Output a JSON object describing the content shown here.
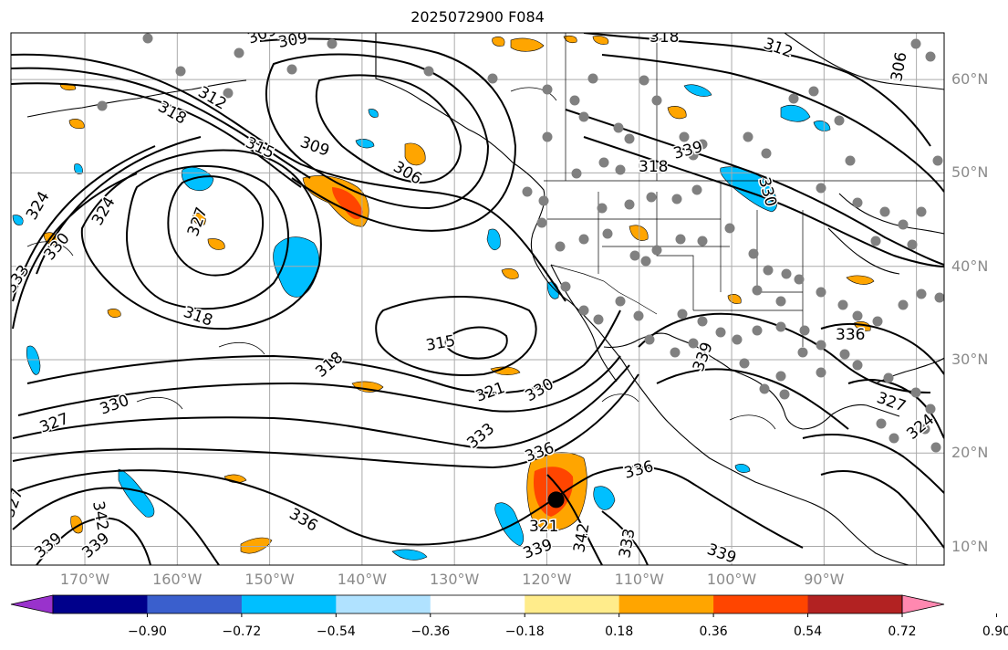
{
  "title": "2025072900 F084",
  "map": {
    "projection": "cylindrical",
    "lon_range": [
      -178,
      -77
    ],
    "lat_range": [
      8,
      65
    ],
    "graticule_lons": [
      -170,
      -160,
      -150,
      -140,
      -130,
      -120,
      -110,
      -100,
      -90,
      -80
    ],
    "graticule_lats": [
      10,
      20,
      30,
      40,
      50,
      60
    ],
    "lon_labels": [
      "170°W",
      "160°W",
      "150°W",
      "140°W",
      "130°W",
      "120°W",
      "110°W",
      "100°W",
      "90°W"
    ],
    "lat_labels": [
      "60°N",
      "50°N",
      "40°N",
      "30°N",
      "20°N",
      "10°N"
    ],
    "contour_labels": [
      "309",
      "318",
      "312",
      "309",
      "306",
      "312",
      "318",
      "315",
      "309",
      "306",
      "324",
      "324",
      "327",
      "330",
      "333",
      "318",
      "315",
      "318",
      "321",
      "330",
      "327",
      "330",
      "333",
      "336",
      "336",
      "339",
      "342",
      "339",
      "336",
      "339",
      "327",
      "324",
      "336",
      "339",
      "330",
      "327",
      "321",
      "342",
      "333",
      "339",
      "339",
      "318"
    ],
    "storm_marker": {
      "lon": -119,
      "lat": 15
    }
  },
  "colorbar": {
    "ticks": [
      "−0.90",
      "−0.72",
      "−0.54",
      "−0.36",
      "−0.18",
      "0.18",
      "0.36",
      "0.54",
      "0.72",
      "0.90"
    ],
    "colors": [
      "#9932CC",
      "#00008B",
      "#3A5FCD",
      "#00BFFF",
      "#B0E2FF",
      "#FFFFFF",
      "#FFEC8B",
      "#FFA500",
      "#FF4500",
      "#B22222",
      "#FF88B0"
    ]
  }
}
